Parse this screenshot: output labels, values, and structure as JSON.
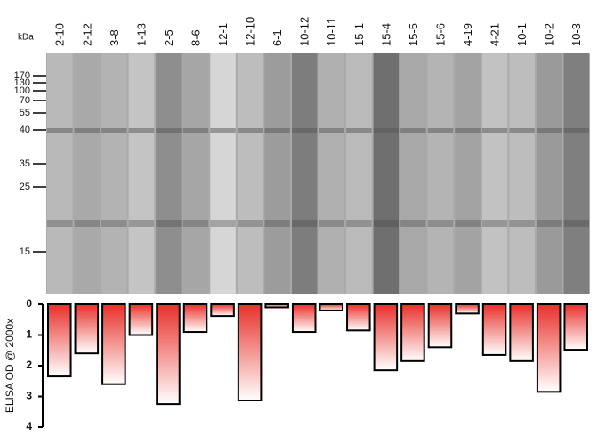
{
  "chart_data": {
    "type": "bar",
    "y_label": "ELISA OD @ 2000x",
    "categories": [
      "2-10",
      "2-12",
      "3-8",
      "1-13",
      "2-5",
      "8-6",
      "12-1",
      "12-10",
      "6-1",
      "10-12",
      "10-11",
      "15-1",
      "15-4",
      "15-5",
      "15-6",
      "4-19",
      "4-21",
      "10-1",
      "10-2",
      "10-3"
    ],
    "values": [
      2.35,
      1.6,
      2.6,
      1.0,
      3.25,
      0.9,
      0.38,
      3.13,
      0.1,
      0.9,
      0.2,
      0.85,
      2.15,
      1.85,
      1.4,
      0.3,
      1.65,
      1.85,
      2.85,
      1.48
    ],
    "color": "#e8302a",
    "ylim": [
      0,
      4
    ],
    "yticks": [
      0,
      1,
      2,
      3,
      4
    ],
    "y_inverted": true
  },
  "blot": {
    "unit": "kDa",
    "markers": [
      "170",
      "130",
      "100",
      "70",
      "55",
      "40",
      "35",
      "25",
      "15"
    ]
  }
}
